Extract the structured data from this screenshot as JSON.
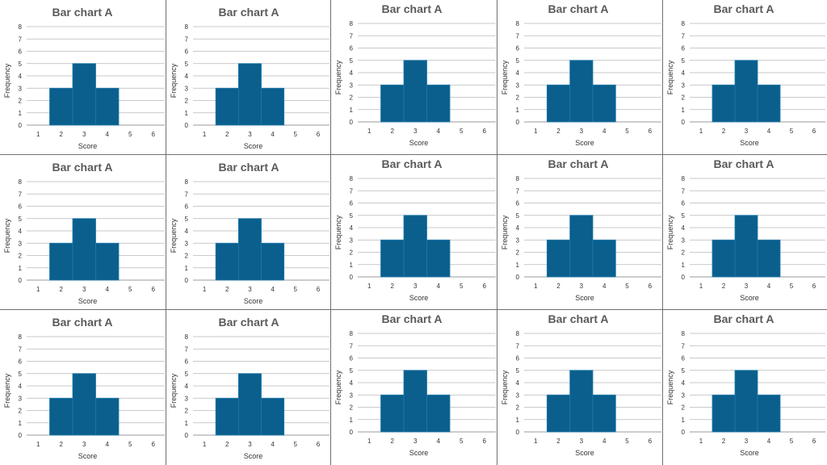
{
  "colors": {
    "bar_fill": "#0b5f8c",
    "bar_edge": "#1c7ab0",
    "grid_line": "#b8b8b8",
    "axis_line": "#7a7a7a",
    "title_text": "#5a5a5a",
    "tick_text": "#333333",
    "divider": "#6f6f6f"
  },
  "chart_data": [
    {
      "type": "bar",
      "title": "Bar chart A",
      "xlabel": "Score",
      "ylabel": "Frequency",
      "x_ticks": [
        "1",
        "2",
        "3",
        "4",
        "5",
        "6"
      ],
      "y_ticks": [
        "0",
        "1",
        "2",
        "3",
        "4",
        "5",
        "6",
        "7",
        "8"
      ],
      "bars": [
        {
          "score": 2,
          "frequency": 3
        },
        {
          "score": 3,
          "frequency": 5
        },
        {
          "score": 4,
          "frequency": 3
        }
      ],
      "xlim": [
        0.5,
        6.5
      ],
      "ylim": [
        0,
        8
      ],
      "grid": true
    },
    {
      "type": "bar",
      "title": "Bar chart A",
      "xlabel": "Score",
      "ylabel": "Frequency",
      "x_ticks": [
        "1",
        "2",
        "3",
        "4",
        "5",
        "6"
      ],
      "y_ticks": [
        "0",
        "1",
        "2",
        "3",
        "4",
        "5",
        "6",
        "7",
        "8"
      ],
      "bars": [
        {
          "score": 2,
          "frequency": 3
        },
        {
          "score": 3,
          "frequency": 5
        },
        {
          "score": 4,
          "frequency": 3
        }
      ],
      "xlim": [
        0.5,
        6.5
      ],
      "ylim": [
        0,
        8
      ],
      "grid": true
    },
    {
      "type": "bar",
      "title": "Bar chart A",
      "xlabel": "Score",
      "ylabel": "Frequency",
      "x_ticks": [
        "1",
        "2",
        "3",
        "4",
        "5",
        "6"
      ],
      "y_ticks": [
        "0",
        "1",
        "2",
        "3",
        "4",
        "5",
        "6",
        "7",
        "8"
      ],
      "bars": [
        {
          "score": 2,
          "frequency": 3
        },
        {
          "score": 3,
          "frequency": 5
        },
        {
          "score": 4,
          "frequency": 3
        }
      ],
      "xlim": [
        0.5,
        6.5
      ],
      "ylim": [
        0,
        8
      ],
      "grid": true
    },
    {
      "type": "bar",
      "title": "Bar chart A",
      "xlabel": "Score",
      "ylabel": "Frequency",
      "x_ticks": [
        "1",
        "2",
        "3",
        "4",
        "5",
        "6"
      ],
      "y_ticks": [
        "0",
        "1",
        "2",
        "3",
        "4",
        "5",
        "6",
        "7",
        "8"
      ],
      "bars": [
        {
          "score": 2,
          "frequency": 3
        },
        {
          "score": 3,
          "frequency": 5
        },
        {
          "score": 4,
          "frequency": 3
        }
      ],
      "xlim": [
        0.5,
        6.5
      ],
      "ylim": [
        0,
        8
      ],
      "grid": true
    },
    {
      "type": "bar",
      "title": "Bar chart A",
      "xlabel": "Score",
      "ylabel": "Frequency",
      "x_ticks": [
        "1",
        "2",
        "3",
        "4",
        "5",
        "6"
      ],
      "y_ticks": [
        "0",
        "1",
        "2",
        "3",
        "4",
        "5",
        "6",
        "7",
        "8"
      ],
      "bars": [
        {
          "score": 2,
          "frequency": 3
        },
        {
          "score": 3,
          "frequency": 5
        },
        {
          "score": 4,
          "frequency": 3
        }
      ],
      "xlim": [
        0.5,
        6.5
      ],
      "ylim": [
        0,
        8
      ],
      "grid": true
    },
    {
      "type": "bar",
      "title": "Bar chart A",
      "xlabel": "Score",
      "ylabel": "Frequency",
      "x_ticks": [
        "1",
        "2",
        "3",
        "4",
        "5",
        "6"
      ],
      "y_ticks": [
        "0",
        "1",
        "2",
        "3",
        "4",
        "5",
        "6",
        "7",
        "8"
      ],
      "bars": [
        {
          "score": 2,
          "frequency": 3
        },
        {
          "score": 3,
          "frequency": 5
        },
        {
          "score": 4,
          "frequency": 3
        }
      ],
      "xlim": [
        0.5,
        6.5
      ],
      "ylim": [
        0,
        8
      ],
      "grid": true
    },
    {
      "type": "bar",
      "title": "Bar chart A",
      "xlabel": "Score",
      "ylabel": "Frequency",
      "x_ticks": [
        "1",
        "2",
        "3",
        "4",
        "5",
        "6"
      ],
      "y_ticks": [
        "0",
        "1",
        "2",
        "3",
        "4",
        "5",
        "6",
        "7",
        "8"
      ],
      "bars": [
        {
          "score": 2,
          "frequency": 3
        },
        {
          "score": 3,
          "frequency": 5
        },
        {
          "score": 4,
          "frequency": 3
        }
      ],
      "xlim": [
        0.5,
        6.5
      ],
      "ylim": [
        0,
        8
      ],
      "grid": true
    },
    {
      "type": "bar",
      "title": "Bar chart A",
      "xlabel": "Score",
      "ylabel": "Frequency",
      "x_ticks": [
        "1",
        "2",
        "3",
        "4",
        "5",
        "6"
      ],
      "y_ticks": [
        "0",
        "1",
        "2",
        "3",
        "4",
        "5",
        "6",
        "7",
        "8"
      ],
      "bars": [
        {
          "score": 2,
          "frequency": 3
        },
        {
          "score": 3,
          "frequency": 5
        },
        {
          "score": 4,
          "frequency": 3
        }
      ],
      "xlim": [
        0.5,
        6.5
      ],
      "ylim": [
        0,
        8
      ],
      "grid": true
    },
    {
      "type": "bar",
      "title": "Bar chart A",
      "xlabel": "Score",
      "ylabel": "Frequency",
      "x_ticks": [
        "1",
        "2",
        "3",
        "4",
        "5",
        "6"
      ],
      "y_ticks": [
        "0",
        "1",
        "2",
        "3",
        "4",
        "5",
        "6",
        "7",
        "8"
      ],
      "bars": [
        {
          "score": 2,
          "frequency": 3
        },
        {
          "score": 3,
          "frequency": 5
        },
        {
          "score": 4,
          "frequency": 3
        }
      ],
      "xlim": [
        0.5,
        6.5
      ],
      "ylim": [
        0,
        8
      ],
      "grid": true
    },
    {
      "type": "bar",
      "title": "Bar chart A",
      "xlabel": "Score",
      "ylabel": "Frequency",
      "x_ticks": [
        "1",
        "2",
        "3",
        "4",
        "5",
        "6"
      ],
      "y_ticks": [
        "0",
        "1",
        "2",
        "3",
        "4",
        "5",
        "6",
        "7",
        "8"
      ],
      "bars": [
        {
          "score": 2,
          "frequency": 3
        },
        {
          "score": 3,
          "frequency": 5
        },
        {
          "score": 4,
          "frequency": 3
        }
      ],
      "xlim": [
        0.5,
        6.5
      ],
      "ylim": [
        0,
        8
      ],
      "grid": true
    },
    {
      "type": "bar",
      "title": "Bar chart A",
      "xlabel": "Score",
      "ylabel": "Frequency",
      "x_ticks": [
        "1",
        "2",
        "3",
        "4",
        "5",
        "6"
      ],
      "y_ticks": [
        "0",
        "1",
        "2",
        "3",
        "4",
        "5",
        "6",
        "7",
        "8"
      ],
      "bars": [
        {
          "score": 2,
          "frequency": 3
        },
        {
          "score": 3,
          "frequency": 5
        },
        {
          "score": 4,
          "frequency": 3
        }
      ],
      "xlim": [
        0.5,
        6.5
      ],
      "ylim": [
        0,
        8
      ],
      "grid": true
    },
    {
      "type": "bar",
      "title": "Bar chart A",
      "xlabel": "Score",
      "ylabel": "Frequency",
      "x_ticks": [
        "1",
        "2",
        "3",
        "4",
        "5",
        "6"
      ],
      "y_ticks": [
        "0",
        "1",
        "2",
        "3",
        "4",
        "5",
        "6",
        "7",
        "8"
      ],
      "bars": [
        {
          "score": 2,
          "frequency": 3
        },
        {
          "score": 3,
          "frequency": 5
        },
        {
          "score": 4,
          "frequency": 3
        }
      ],
      "xlim": [
        0.5,
        6.5
      ],
      "ylim": [
        0,
        8
      ],
      "grid": true
    },
    {
      "type": "bar",
      "title": "Bar chart A",
      "xlabel": "Score",
      "ylabel": "Frequency",
      "x_ticks": [
        "1",
        "2",
        "3",
        "4",
        "5",
        "6"
      ],
      "y_ticks": [
        "0",
        "1",
        "2",
        "3",
        "4",
        "5",
        "6",
        "7",
        "8"
      ],
      "bars": [
        {
          "score": 2,
          "frequency": 3
        },
        {
          "score": 3,
          "frequency": 5
        },
        {
          "score": 4,
          "frequency": 3
        }
      ],
      "xlim": [
        0.5,
        6.5
      ],
      "ylim": [
        0,
        8
      ],
      "grid": true
    },
    {
      "type": "bar",
      "title": "Bar chart A",
      "xlabel": "Score",
      "ylabel": "Frequency",
      "x_ticks": [
        "1",
        "2",
        "3",
        "4",
        "5",
        "6"
      ],
      "y_ticks": [
        "0",
        "1",
        "2",
        "3",
        "4",
        "5",
        "6",
        "7",
        "8"
      ],
      "bars": [
        {
          "score": 2,
          "frequency": 3
        },
        {
          "score": 3,
          "frequency": 5
        },
        {
          "score": 4,
          "frequency": 3
        }
      ],
      "xlim": [
        0.5,
        6.5
      ],
      "ylim": [
        0,
        8
      ],
      "grid": true
    },
    {
      "type": "bar",
      "title": "Bar chart A",
      "xlabel": "Score",
      "ylabel": "Frequency",
      "x_ticks": [
        "1",
        "2",
        "3",
        "4",
        "5",
        "6"
      ],
      "y_ticks": [
        "0",
        "1",
        "2",
        "3",
        "4",
        "5",
        "6",
        "7",
        "8"
      ],
      "bars": [
        {
          "score": 2,
          "frequency": 3
        },
        {
          "score": 3,
          "frequency": 5
        },
        {
          "score": 4,
          "frequency": 3
        }
      ],
      "xlim": [
        0.5,
        6.5
      ],
      "ylim": [
        0,
        8
      ],
      "grid": true
    }
  ]
}
